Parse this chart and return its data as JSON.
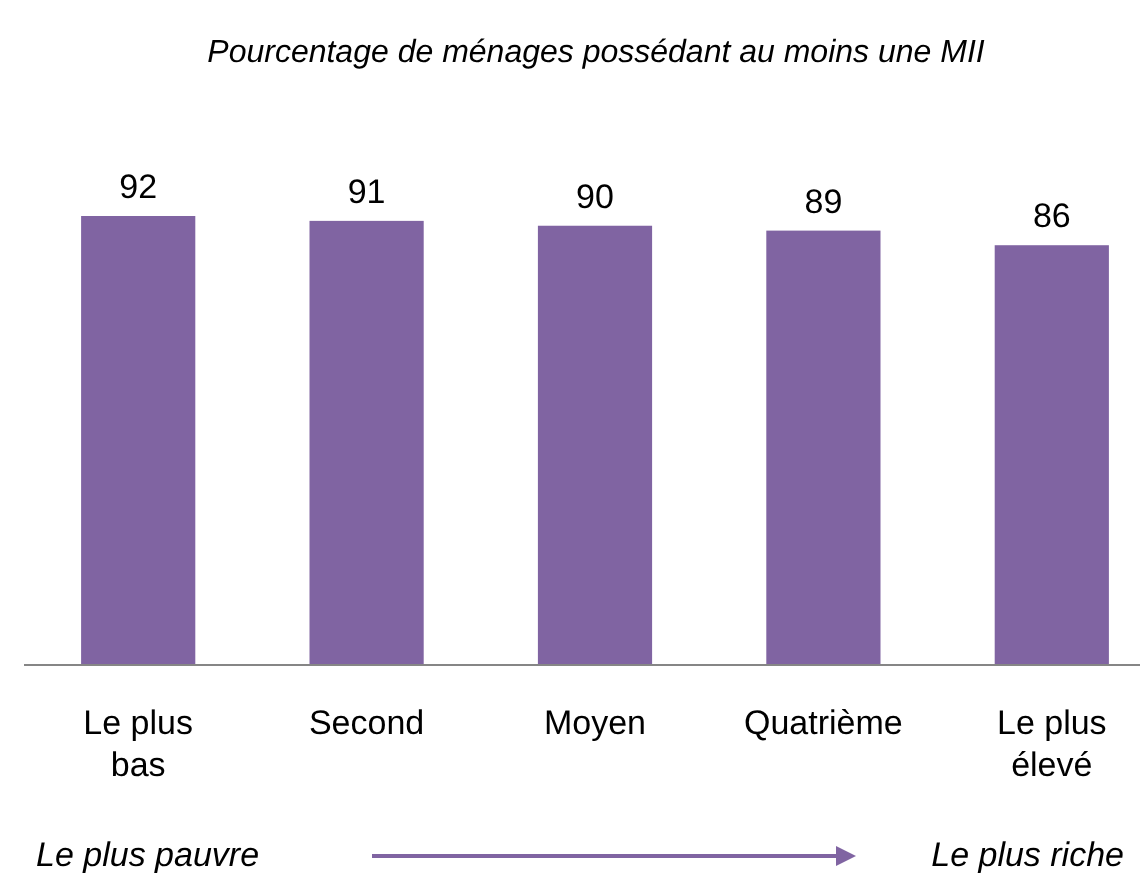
{
  "chart_data": {
    "type": "bar",
    "title": "Pourcentage de ménages possédant au moins une MII",
    "categories": [
      "Le plus bas",
      "Second",
      "Moyen",
      "Quatrième",
      "Le plus élevé"
    ],
    "values": [
      92,
      91,
      90,
      89,
      86
    ],
    "color": "#8064a2",
    "data_labels": true,
    "annotations": [
      "Le plus pauvre",
      "Le plus riche"
    ]
  }
}
